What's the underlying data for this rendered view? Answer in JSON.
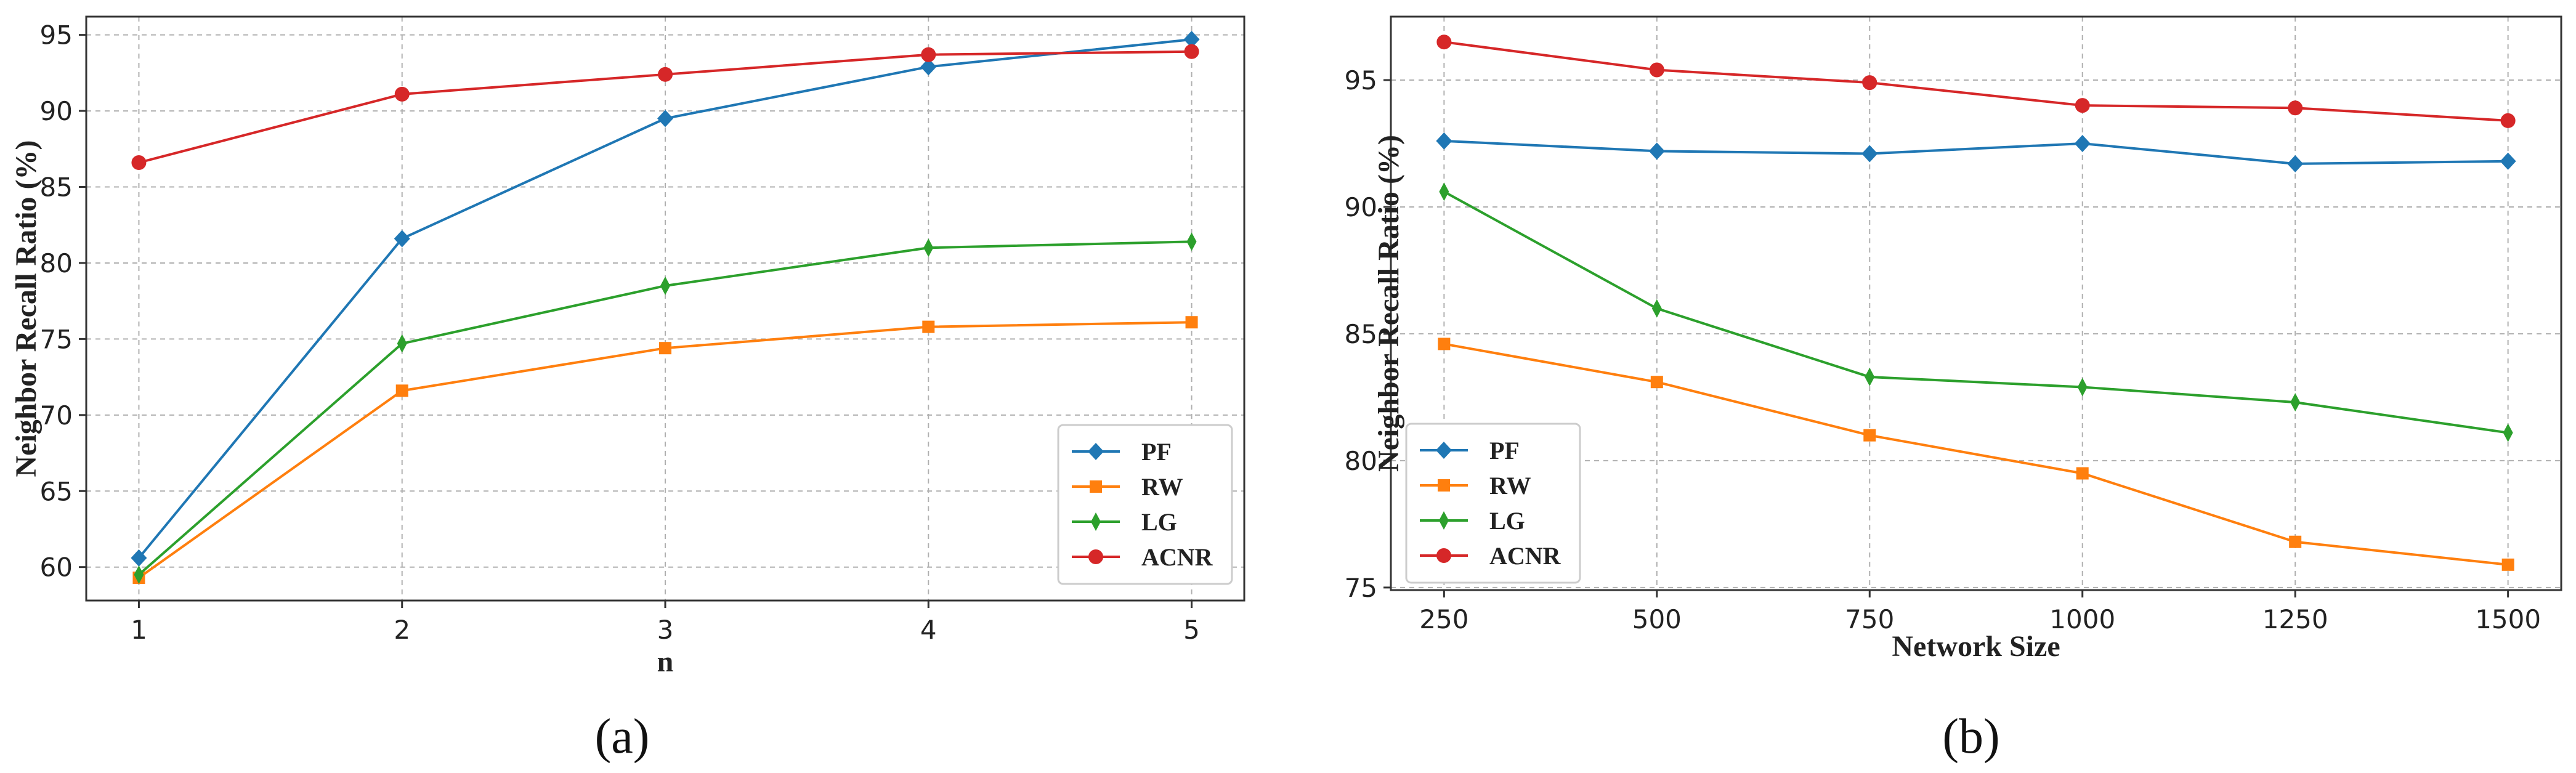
{
  "chart_data": [
    {
      "type": "line",
      "panel": "a",
      "caption": "(a)",
      "xlabel": "n",
      "ylabel": "Neighbor Recall Ratio (%)",
      "x": [
        1,
        2,
        3,
        4,
        5
      ],
      "x_ticks": [
        "1",
        "2",
        "3",
        "4",
        "5"
      ],
      "xlim": [
        0.8,
        5.2
      ],
      "ylim": [
        57.8,
        96.2
      ],
      "y_ticks": [
        60,
        65,
        70,
        75,
        80,
        85,
        90,
        95
      ],
      "grid": true,
      "legend_position": "lower-right",
      "series": [
        {
          "name": "PF",
          "color": "#1f77b4",
          "marker": "diamond",
          "values": [
            60.6,
            81.6,
            89.5,
            92.9,
            94.7
          ]
        },
        {
          "name": "RW",
          "color": "#ff7f0e",
          "marker": "square",
          "values": [
            59.3,
            71.6,
            74.4,
            75.8,
            76.1
          ]
        },
        {
          "name": "LG",
          "color": "#2ca02c",
          "marker": "thin_diamond",
          "values": [
            59.5,
            74.7,
            78.5,
            81.0,
            81.4
          ]
        },
        {
          "name": "ACNR",
          "color": "#d62728",
          "marker": "circle",
          "values": [
            86.6,
            91.1,
            92.4,
            93.7,
            93.9
          ]
        }
      ]
    },
    {
      "type": "line",
      "panel": "b",
      "caption": "(b)",
      "xlabel": "Network Size",
      "ylabel": "Neighbor Recall Ratio (%)",
      "x": [
        250,
        500,
        750,
        1000,
        1250,
        1500
      ],
      "x_ticks": [
        "250",
        "500",
        "750",
        "1000",
        "1250",
        "1500"
      ],
      "xlim": [
        187.5,
        1562.5
      ],
      "ylim": [
        74.9,
        97.5
      ],
      "y_ticks": [
        75,
        80,
        85,
        90,
        95
      ],
      "grid": true,
      "legend_position": "lower-left",
      "series": [
        {
          "name": "PF",
          "color": "#1f77b4",
          "marker": "diamond",
          "values": [
            92.6,
            92.2,
            92.1,
            92.5,
            91.7,
            91.8
          ]
        },
        {
          "name": "RW",
          "color": "#ff7f0e",
          "marker": "square",
          "values": [
            84.6,
            83.1,
            81.0,
            79.5,
            76.8,
            75.9
          ]
        },
        {
          "name": "LG",
          "color": "#2ca02c",
          "marker": "thin_diamond",
          "values": [
            90.6,
            86.0,
            83.3,
            82.9,
            82.3,
            81.1
          ]
        },
        {
          "name": "ACNR",
          "color": "#d62728",
          "marker": "circle",
          "values": [
            96.5,
            95.4,
            94.9,
            94.0,
            93.9,
            93.4
          ]
        }
      ]
    }
  ]
}
